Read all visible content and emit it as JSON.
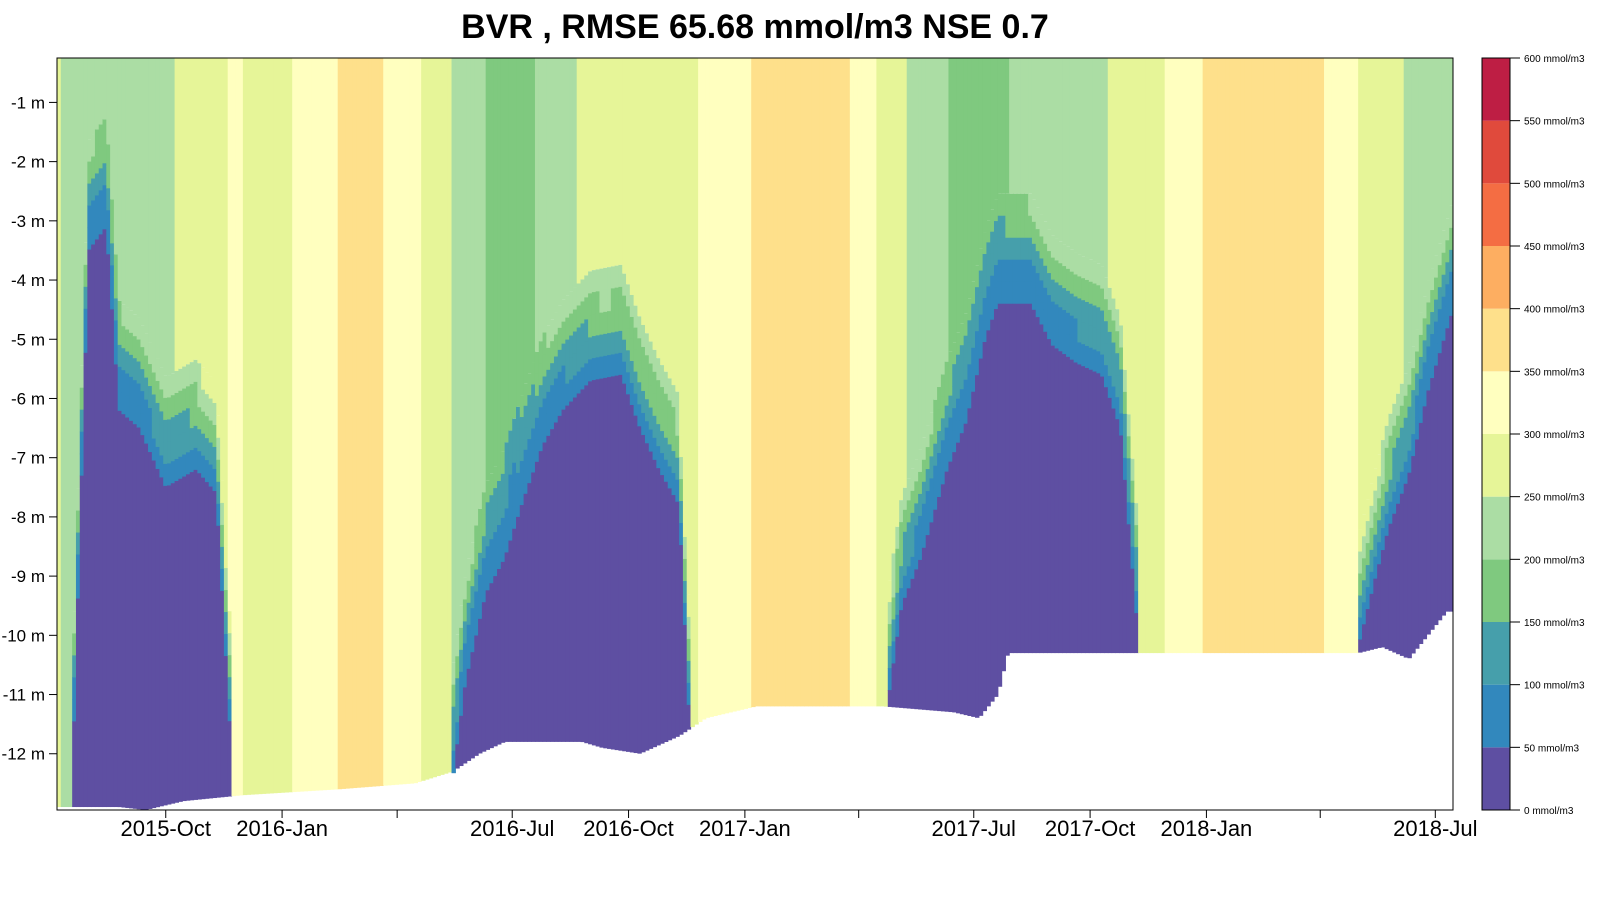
{
  "chart_data": {
    "type": "heatmap",
    "title": "BVR , RMSE 65.68 mmol/m3 NSE 0.7",
    "xlabel": "",
    "ylabel": "",
    "x_range": [
      "2015-07-07",
      "2018-07-15"
    ],
    "y_range": [
      -12.95,
      -0.25
    ],
    "y_ticks": [
      {
        "value": -1,
        "label": "-1 m"
      },
      {
        "value": -2,
        "label": "-2 m"
      },
      {
        "value": -3,
        "label": "-3 m"
      },
      {
        "value": -4,
        "label": "-4 m"
      },
      {
        "value": -5,
        "label": "-5 m"
      },
      {
        "value": -6,
        "label": "-6 m"
      },
      {
        "value": -7,
        "label": "-7 m"
      },
      {
        "value": -8,
        "label": "-8 m"
      },
      {
        "value": -9,
        "label": "-9 m"
      },
      {
        "value": -10,
        "label": "-10 m"
      },
      {
        "value": -11,
        "label": "-11 m"
      },
      {
        "value": -12,
        "label": "-12 m"
      }
    ],
    "x_ticks": [
      {
        "date": "2015-10-01",
        "label": "2015-Oct"
      },
      {
        "date": "2016-01-01",
        "label": "2016-Jan"
      },
      {
        "date": "2016-04-01",
        "label": ""
      },
      {
        "date": "2016-07-01",
        "label": "2016-Jul"
      },
      {
        "date": "2016-10-01",
        "label": "2016-Oct"
      },
      {
        "date": "2017-01-01",
        "label": "2017-Jan"
      },
      {
        "date": "2017-04-01",
        "label": ""
      },
      {
        "date": "2017-07-01",
        "label": "2017-Jul"
      },
      {
        "date": "2017-10-01",
        "label": "2017-Oct"
      },
      {
        "date": "2018-01-01",
        "label": "2018-Jan"
      },
      {
        "date": "2018-04-01",
        "label": ""
      },
      {
        "date": "2018-07-01",
        "label": "2018-Jul"
      }
    ],
    "color_levels": [
      0,
      50,
      100,
      150,
      200,
      250,
      300,
      350,
      400,
      450,
      500,
      550,
      600
    ],
    "colors": [
      "#5e4fa2",
      "#3288bd",
      "#469fab",
      "#7fc97f",
      "#abdda4",
      "#e6f598",
      "#ffffbf",
      "#fee08b",
      "#fdae61",
      "#f46d43",
      "#e04a3c",
      "#be1e44"
    ],
    "legend_labels": [
      "0 mmol/m3",
      "50 mmol/m3",
      "100 mmol/m3",
      "150 mmol/m3",
      "200 mmol/m3",
      "250 mmol/m3",
      "300 mmol/m3",
      "350 mmol/m3",
      "400 mmol/m3",
      "450 mmol/m3",
      "500 mmol/m3",
      "550 mmol/m3",
      "600 mmol/m3"
    ],
    "legend_placement": "right",
    "grid": false,
    "surface_values": [
      [
        "2015-07-07",
        300
      ],
      [
        "2015-07-12",
        230
      ],
      [
        "2015-08-20",
        210
      ],
      [
        "2015-09-05",
        230
      ],
      [
        "2015-10-15",
        255
      ],
      [
        "2015-11-25",
        310
      ],
      [
        "2015-12-20",
        270
      ],
      [
        "2016-01-15",
        310
      ],
      [
        "2016-02-15",
        350
      ],
      [
        "2016-03-15",
        360
      ],
      [
        "2016-04-10",
        320
      ],
      [
        "2016-05-10",
        260
      ],
      [
        "2016-06-10",
        200
      ],
      [
        "2016-07-01",
        150
      ],
      [
        "2016-08-01",
        230
      ],
      [
        "2016-09-10",
        270
      ],
      [
        "2016-11-01",
        260
      ],
      [
        "2016-12-01",
        310
      ],
      [
        "2017-01-15",
        360
      ],
      [
        "2017-03-15",
        370
      ],
      [
        "2017-04-15",
        300
      ],
      [
        "2017-05-10",
        250
      ],
      [
        "2017-06-10",
        200
      ],
      [
        "2017-07-10",
        180
      ],
      [
        "2017-08-15",
        220
      ],
      [
        "2017-09-20",
        240
      ],
      [
        "2017-11-10",
        260
      ],
      [
        "2017-12-10",
        320
      ],
      [
        "2018-01-10",
        370
      ],
      [
        "2018-02-10",
        395
      ],
      [
        "2018-03-20",
        380
      ],
      [
        "2018-04-20",
        320
      ],
      [
        "2018-05-20",
        270
      ],
      [
        "2018-06-15",
        240
      ],
      [
        "2018-07-15",
        230
      ]
    ],
    "anoxic_boundary_depth": [
      [
        "2015-07-07",
        null
      ],
      [
        "2015-07-20",
        -11.8
      ],
      [
        "2015-08-01",
        -3.5
      ],
      [
        "2015-08-15",
        -3.1
      ],
      [
        "2015-08-25",
        -6.2
      ],
      [
        "2015-09-10",
        -6.5
      ],
      [
        "2015-10-01",
        -7.5
      ],
      [
        "2015-10-25",
        -7.2
      ],
      [
        "2015-11-10",
        -7.6
      ],
      [
        "2015-11-22",
        -12.0
      ],
      [
        "2015-11-25",
        null
      ],
      [
        "2016-05-10",
        null
      ],
      [
        "2016-05-15",
        -12.4
      ],
      [
        "2016-05-25",
        -10.8
      ],
      [
        "2016-06-10",
        -9.3
      ],
      [
        "2016-06-25",
        -8.7
      ],
      [
        "2016-07-10",
        -7.7
      ],
      [
        "2016-07-25",
        -6.8
      ],
      [
        "2016-08-10",
        -6.2
      ],
      [
        "2016-09-01",
        -5.7
      ],
      [
        "2016-09-25",
        -5.6
      ],
      [
        "2016-10-10",
        -6.5
      ],
      [
        "2016-10-25",
        -7.2
      ],
      [
        "2016-11-10",
        -7.8
      ],
      [
        "2016-11-18",
        -11.4
      ],
      [
        "2016-11-20",
        null
      ],
      [
        "2017-04-20",
        null
      ],
      [
        "2017-04-25",
        -11.0
      ],
      [
        "2017-05-05",
        -9.5
      ],
      [
        "2017-05-20",
        -8.7
      ],
      [
        "2017-06-10",
        -7.2
      ],
      [
        "2017-06-25",
        -6.4
      ],
      [
        "2017-07-10",
        -5.0
      ],
      [
        "2017-07-20",
        -4.4
      ],
      [
        "2017-08-15",
        -4.4
      ],
      [
        "2017-09-01",
        -5.1
      ],
      [
        "2017-09-20",
        -5.4
      ],
      [
        "2017-10-10",
        -5.6
      ],
      [
        "2017-10-25",
        -6.5
      ],
      [
        "2017-11-08",
        -10.0
      ],
      [
        "2017-11-15",
        null
      ],
      [
        "2018-04-25",
        null
      ],
      [
        "2018-05-01",
        -10.2
      ],
      [
        "2018-05-15",
        -9.0
      ],
      [
        "2018-05-25",
        -8.2
      ],
      [
        "2018-06-10",
        -7.3
      ],
      [
        "2018-06-25",
        -5.9
      ],
      [
        "2018-07-15",
        -4.5
      ]
    ],
    "bottom_depth": [
      [
        "2015-07-07",
        -12.9
      ],
      [
        "2015-08-25",
        -12.9
      ],
      [
        "2015-09-15",
        -12.95
      ],
      [
        "2015-10-15",
        -12.8
      ],
      [
        "2015-12-01",
        -12.7
      ],
      [
        "2016-02-15",
        -12.6
      ],
      [
        "2016-04-15",
        -12.5
      ],
      [
        "2016-05-15",
        -12.3
      ],
      [
        "2016-06-05",
        -12.0
      ],
      [
        "2016-06-25",
        -11.8
      ],
      [
        "2016-08-25",
        -11.8
      ],
      [
        "2016-09-10",
        -11.9
      ],
      [
        "2016-10-10",
        -12.0
      ],
      [
        "2016-11-10",
        -11.7
      ],
      [
        "2016-12-01",
        -11.4
      ],
      [
        "2017-01-10",
        -11.2
      ],
      [
        "2017-04-20",
        -11.2
      ],
      [
        "2017-06-15",
        -11.3
      ],
      [
        "2017-07-05",
        -11.4
      ],
      [
        "2017-07-20",
        -11.0
      ],
      [
        "2017-07-28",
        -10.3
      ],
      [
        "2018-03-10",
        -10.3
      ],
      [
        "2018-05-01",
        -10.3
      ],
      [
        "2018-05-20",
        -10.2
      ],
      [
        "2018-06-10",
        -10.4
      ],
      [
        "2018-06-25",
        -10.0
      ],
      [
        "2018-07-10",
        -9.6
      ],
      [
        "2018-07-15",
        -9.6
      ]
    ]
  }
}
